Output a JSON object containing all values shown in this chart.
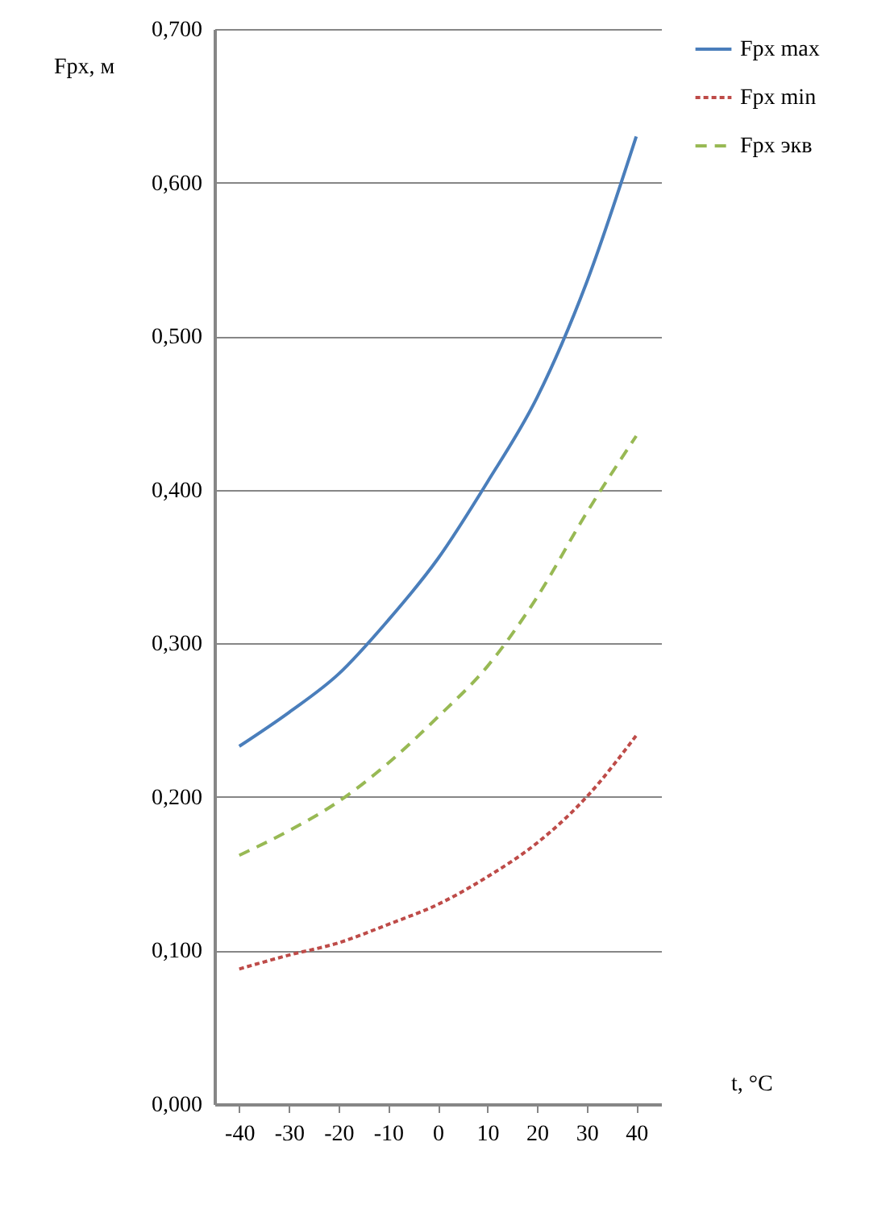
{
  "chart_data": {
    "type": "line",
    "xlabel": "t, °C",
    "ylabel": "Fрх, м",
    "x": [
      -40,
      -30,
      -20,
      -10,
      0,
      10,
      20,
      30,
      40
    ],
    "series": [
      {
        "name": "Fрх max",
        "color": "#4a7ebb",
        "line_style": "solid",
        "values": [
          0.233,
          0.255,
          0.28,
          0.315,
          0.355,
          0.405,
          0.46,
          0.535,
          0.63
        ]
      },
      {
        "name": "Fрх min",
        "color": "#be4b48",
        "line_style": "dotted",
        "values": [
          0.088,
          0.097,
          0.105,
          0.117,
          0.13,
          0.148,
          0.17,
          0.2,
          0.24
        ]
      },
      {
        "name": "Fрх экв",
        "color": "#98b954",
        "line_style": "dashed",
        "values": [
          0.162,
          0.178,
          0.197,
          0.222,
          0.252,
          0.285,
          0.33,
          0.385,
          0.435
        ]
      }
    ],
    "xlim": [
      -45,
      45
    ],
    "xticks": [
      -40,
      -30,
      -20,
      -10,
      0,
      10,
      20,
      30,
      40
    ],
    "ylim": [
      0,
      0.7
    ],
    "yticks": [
      {
        "value": 0,
        "label": "0,000"
      },
      {
        "value": 0.1,
        "label": "0,100"
      },
      {
        "value": 0.2,
        "label": "0,200"
      },
      {
        "value": 0.3,
        "label": "0,300"
      },
      {
        "value": 0.4,
        "label": "0,400"
      },
      {
        "value": 0.5,
        "label": "0,500"
      },
      {
        "value": 0.6,
        "label": "0,600"
      },
      {
        "value": 0.7,
        "label": "0,700"
      }
    ],
    "grid": "y",
    "legend": "right",
    "marker": "none"
  }
}
